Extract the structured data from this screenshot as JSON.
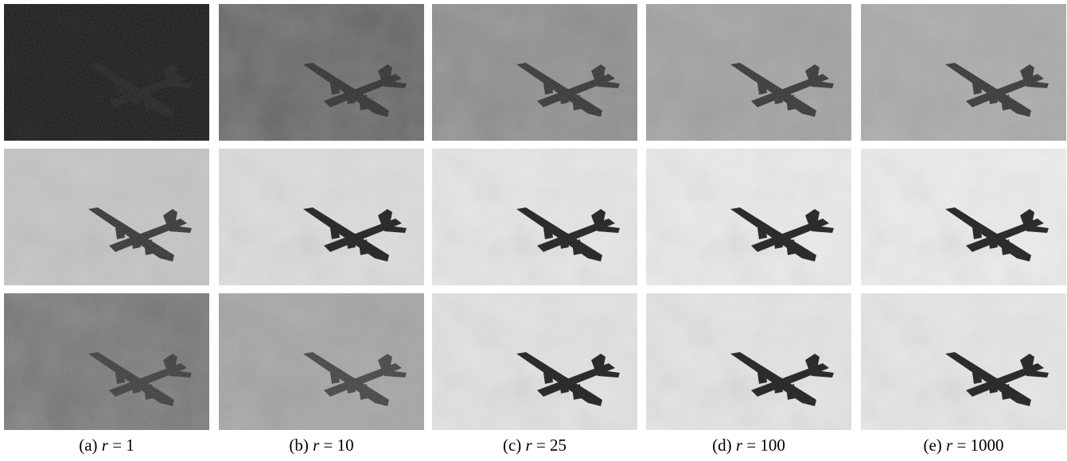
{
  "captions": [
    {
      "label": "(a)",
      "symbol": "r",
      "relation": "=",
      "value": 1
    },
    {
      "label": "(b)",
      "symbol": "r",
      "relation": "=",
      "value": 10
    },
    {
      "label": "(c)",
      "symbol": "r",
      "relation": "=",
      "value": 25
    },
    {
      "label": "(d)",
      "symbol": "r",
      "relation": "=",
      "value": 100
    },
    {
      "label": "(e)",
      "symbol": "r",
      "relation": "=",
      "value": 1000
    }
  ]
}
